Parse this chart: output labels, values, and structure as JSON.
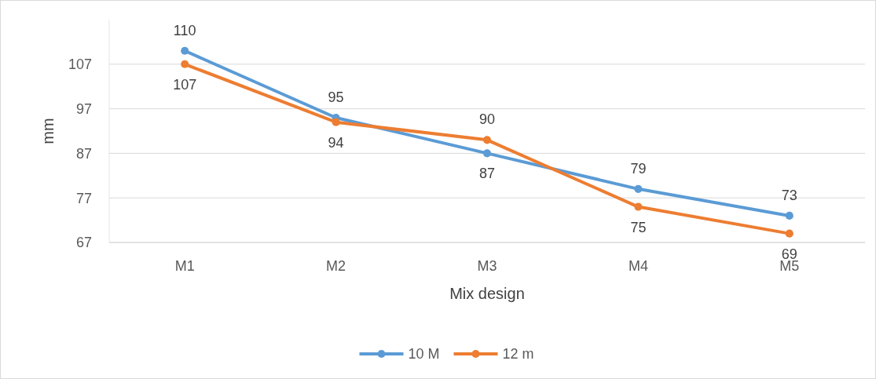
{
  "chart_data": {
    "type": "line",
    "xlabel": "Mix design",
    "ylabel": "mm",
    "categories": [
      "M1",
      "M2",
      "M3",
      "M4",
      "M5"
    ],
    "series": [
      {
        "name": "10 M",
        "color": "#5b9bd5",
        "values": [
          110,
          95,
          87,
          79,
          73
        ]
      },
      {
        "name": "12 m",
        "color": "#ed7d31",
        "values": [
          107,
          94,
          90,
          75,
          69
        ]
      }
    ],
    "ylim": [
      67,
      117
    ],
    "yticks": [
      67,
      77,
      87,
      97,
      107
    ],
    "grid": "y",
    "legend": "bottom",
    "marker": "circle",
    "data_labels": true
  }
}
